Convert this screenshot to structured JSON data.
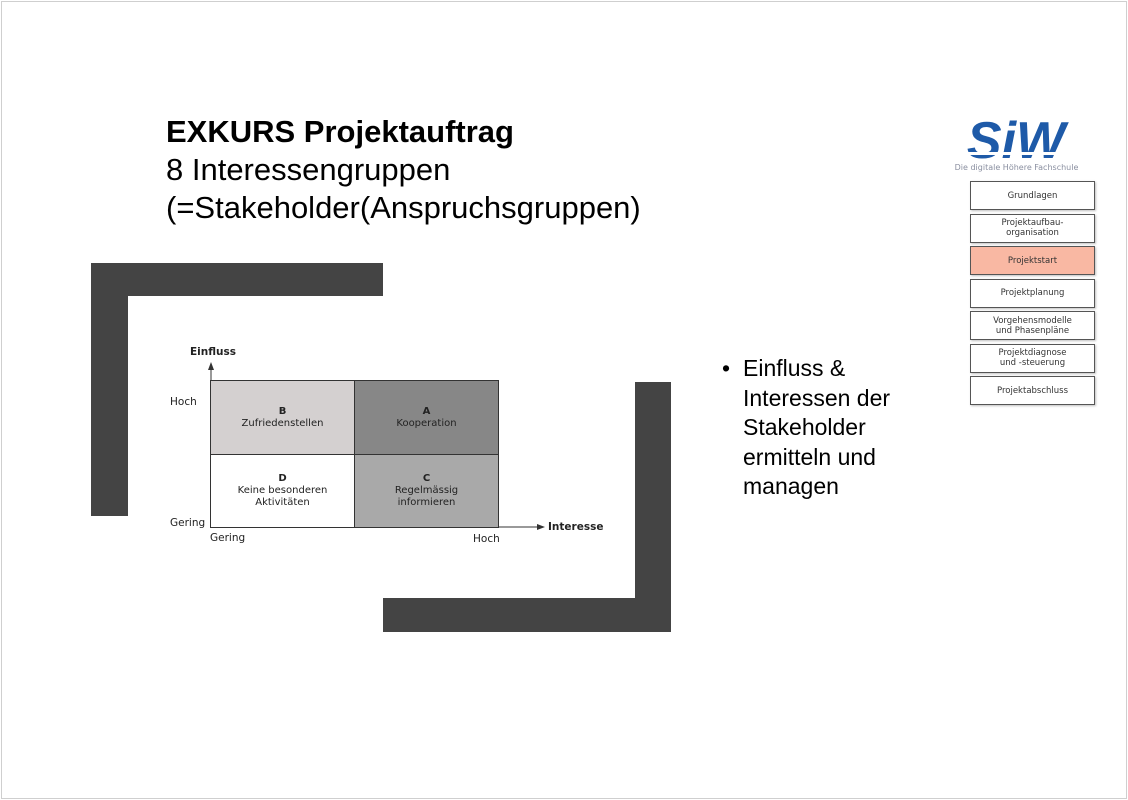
{
  "slide": {
    "title_bold": "EXKURS Projektauftrag",
    "title_line2": "8 Interessengruppen",
    "title_line3": "(=Stakeholder(Anspruchsgruppen)"
  },
  "logo": {
    "text": "SiW",
    "subtitle": "Die digitale Höhere Fachschule",
    "color": "#1e5aa8"
  },
  "nav": {
    "items": [
      {
        "label": "Grundlagen",
        "active": false
      },
      {
        "label": "Projektaufbau-\norganisation",
        "active": false
      },
      {
        "label": "Projektstart",
        "active": true
      },
      {
        "label": "Projektplanung",
        "active": false
      },
      {
        "label": "Vorgehensmodelle\nund Phasenpläne",
        "active": false
      },
      {
        "label": "Projektdiagnose\nund -steuerung",
        "active": false
      },
      {
        "label": "Projektabschluss",
        "active": false
      }
    ],
    "active_color": "#f9b8a3"
  },
  "bullet": {
    "text": "Einfluss & Interessen der Stakeholder ermitteln und managen"
  },
  "matrix": {
    "y_axis_label": "Einfluss",
    "x_axis_label": "Interesse",
    "y_high": "Hoch",
    "y_low": "Gering",
    "x_low": "Gering",
    "x_high": "Hoch",
    "cells": {
      "B": {
        "letter": "B",
        "text": "Zufriedenstellen",
        "color": "#d4d0d0"
      },
      "A": {
        "letter": "A",
        "text": "Kooperation",
        "color": "#878787"
      },
      "D": {
        "letter": "D",
        "line1": "Keine besonderen",
        "line2": "Aktivitäten",
        "color": "#ffffff"
      },
      "C": {
        "letter": "C",
        "line1": "Regelmässig",
        "line2": "informieren",
        "color": "#a9a9a9"
      }
    }
  }
}
